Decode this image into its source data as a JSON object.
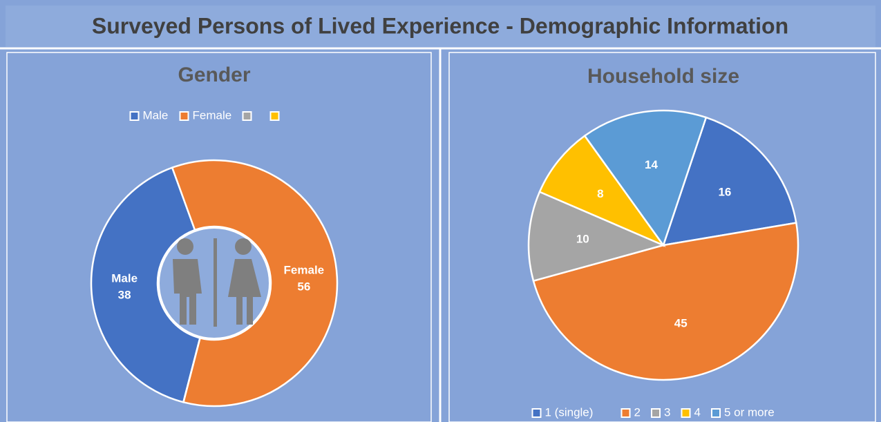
{
  "title": "Surveyed Persons of Lived Experience - Demographic Information",
  "chart_data": [
    {
      "type": "donut",
      "title": "Gender",
      "categories": [
        "Male",
        "Female",
        null,
        null
      ],
      "values": [
        38,
        56,
        0,
        0
      ],
      "colors": [
        "#4472c4",
        "#ed7d31",
        "#a5a5a5",
        "#ffc000"
      ],
      "legend": "top"
    },
    {
      "type": "pie",
      "title": "Household size",
      "categories": [
        "1 (single)",
        "2",
        "3",
        "4",
        "5 or more"
      ],
      "values": [
        16,
        45,
        10,
        8,
        14
      ],
      "colors": [
        "#4472c4",
        "#ed7d31",
        "#a5a5a5",
        "#ffc000",
        "#5b9bd5"
      ],
      "legend": "bottom"
    }
  ]
}
